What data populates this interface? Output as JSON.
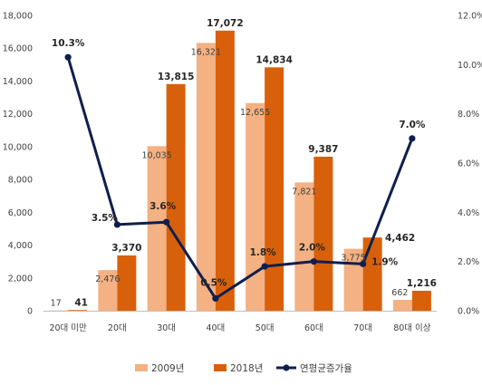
{
  "chart_data": {
    "type": "bar",
    "categories": [
      "20대 미만",
      "20대",
      "30대",
      "40대",
      "50대",
      "60대",
      "70대",
      "80대 이상"
    ],
    "series": [
      {
        "name": "2009년",
        "type": "bar",
        "axis": "left",
        "color": "#F4B183",
        "values": [
          17,
          2476,
          10035,
          16321,
          12655,
          7821,
          3775,
          662
        ],
        "labels": [
          "17",
          "2,476",
          "10,035",
          "16,321",
          "12,655",
          "7,821",
          "3,775",
          "662"
        ]
      },
      {
        "name": "2018년",
        "type": "bar",
        "axis": "left",
        "color": "#D9600B",
        "values": [
          41,
          3370,
          13815,
          17072,
          14834,
          9387,
          4462,
          1216
        ],
        "labels": [
          "41",
          "3,370",
          "13,815",
          "17,072",
          "14,834",
          "9,387",
          "4,462",
          "1,216"
        ]
      },
      {
        "name": "연평균증가율",
        "type": "line",
        "axis": "right",
        "color": "#0F1F4D",
        "values": [
          10.3,
          3.5,
          3.6,
          0.5,
          1.8,
          2.0,
          1.9,
          7.0
        ],
        "labels": [
          "10.3%",
          "3.5%",
          "3.6%",
          "0.5%",
          "1.8%",
          "2.0%",
          "1.9%",
          "7.0%"
        ]
      }
    ],
    "ylim_left": [
      0,
      18000
    ],
    "yticks_left": [
      "0",
      "2,000",
      "4,000",
      "6,000",
      "8,000",
      "10,000",
      "12,000",
      "14,000",
      "16,000",
      "18,000"
    ],
    "ylim_right": [
      0,
      12
    ],
    "yticks_right": [
      "0.0%",
      "2.0%",
      "4.0%",
      "6.0%",
      "8.0%",
      "10.0%",
      "12.0%"
    ],
    "title": "",
    "xlabel": "",
    "ylabel": "",
    "grid": false,
    "legend": "bottom"
  }
}
